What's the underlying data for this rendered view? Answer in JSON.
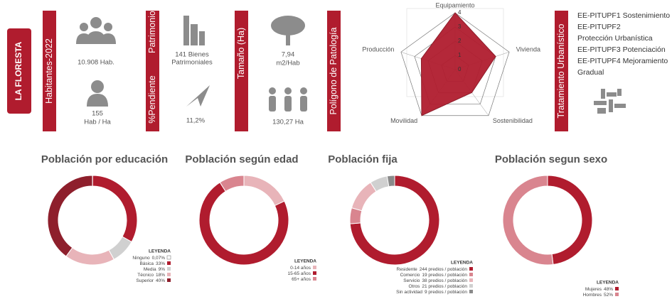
{
  "district": "LA FLORESTA",
  "sections": [
    {
      "titles": [
        "Habitantes-2022"
      ],
      "stats": [
        [
          "10.908 Hab."
        ],
        [
          "155",
          "Hab / Ha"
        ]
      ]
    },
    {
      "titles": [
        "Patrimonio",
        "%Pendiente"
      ],
      "stats": [
        [
          "141 Bienes",
          "Patrimoniales"
        ],
        [
          "11,2%"
        ]
      ]
    },
    {
      "titles": [
        "Tamaño (Ha)"
      ],
      "stats": [
        [
          "7,94",
          "m2/Hab"
        ],
        [
          "130,27 Ha"
        ]
      ]
    }
  ],
  "treatment": {
    "title": "Tratamiento Urbanístico",
    "items": [
      "EE-PITUPF1 Sostenimiento",
      "EE-PITUPF2",
      "Protección Urbanística",
      "EE-PITUPF3 Potenciación",
      "EE-PITUPF4 Mejoramiento Gradual"
    ]
  },
  "chart_data": [
    {
      "type": "radar",
      "title": "Polígono de Patología",
      "categories": [
        "Equipamiento",
        "Vivienda",
        "Sostenibilidad",
        "Movilidad",
        "Producción"
      ],
      "values": [
        4,
        3,
        2,
        4,
        2.5
      ],
      "color": "#b01c2e",
      "rlim": [
        0,
        4
      ],
      "rticks": [
        0,
        1,
        2,
        3,
        4
      ]
    },
    {
      "type": "donut",
      "title": "Población por educación",
      "legend_title": "LEYENDA",
      "categories": [
        "Ninguno",
        "Básica",
        "Media",
        "Técnico",
        "Superior"
      ],
      "values": [
        0.07,
        33,
        9,
        18,
        40
      ],
      "value_labels": [
        "0,07%",
        "33%",
        "9%",
        "18%",
        "40%"
      ],
      "colors": [
        "#ffffff",
        "#b01c2e",
        "#d0d0d0",
        "#e8b4b9",
        "#8e1f2c"
      ]
    },
    {
      "type": "donut",
      "title": "Población según edad",
      "legend_title": "LEYENDA",
      "categories": [
        "0-14 años",
        "15-65 años",
        "65+ años"
      ],
      "values": [
        18,
        73,
        9
      ],
      "colors": [
        "#e8b4b9",
        "#b01c2e",
        "#d9858f"
      ]
    },
    {
      "type": "donut",
      "title": "Población fija",
      "legend_title": "LEYENDA",
      "categories": [
        "Residente",
        "Comercio",
        "Servicio",
        "Otros",
        "Sin actividad"
      ],
      "values": [
        244,
        19,
        38,
        21,
        9
      ],
      "value_labels": [
        "244 predios / población",
        "19 predios / población",
        "38 predios / población",
        "21 predios / población",
        "9 predios / población"
      ],
      "colors": [
        "#b01c2e",
        "#d9858f",
        "#e8b4b9",
        "#d0d0d0",
        "#8a8a8a"
      ]
    },
    {
      "type": "donut",
      "title": "Población segun sexo",
      "legend_title": "LEYENDA",
      "categories": [
        "Mujeres",
        "Hombres"
      ],
      "values": [
        48,
        52
      ],
      "value_labels": [
        "48%",
        "52%"
      ],
      "colors": [
        "#b01c2e",
        "#d9858f"
      ]
    }
  ]
}
